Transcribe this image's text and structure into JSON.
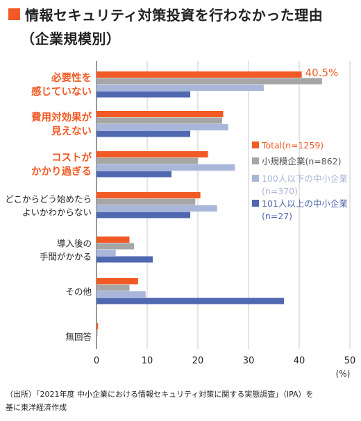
{
  "header": {
    "title": "情報セキュリティ対策投資を行わなかった理由",
    "subtitle": "（企業規模別）"
  },
  "colors": {
    "accent": "#f15a24",
    "title_marker": "#f15a24"
  },
  "chart_data": {
    "type": "bar",
    "orientation": "horizontal",
    "categories": [
      {
        "lines": [
          "必要性を",
          "感じていない"
        ],
        "highlight": true
      },
      {
        "lines": [
          "費用対効果が",
          "見えない"
        ],
        "highlight": true
      },
      {
        "lines": [
          "コストが",
          "かかり過ぎる"
        ],
        "highlight": true
      },
      {
        "lines": [
          "どこからどう始めたら",
          "よいかわからない"
        ],
        "highlight": false
      },
      {
        "lines": [
          "導入後の",
          "手間がかかる"
        ],
        "highlight": false
      },
      {
        "lines": [
          "その他"
        ],
        "highlight": false
      },
      {
        "lines": [
          "無回答"
        ],
        "highlight": false
      }
    ],
    "series": [
      {
        "name": "Total(n=1259)",
        "color": "#f15a24",
        "values": [
          40.5,
          25.0,
          22.0,
          20.5,
          6.5,
          8.2,
          0.3
        ]
      },
      {
        "name": "小規模企業(n=862)",
        "color": "#a6a6a6",
        "values": [
          44.5,
          24.8,
          20.0,
          19.5,
          7.4,
          6.5,
          0.2
        ]
      },
      {
        "name": "100人以下の中小企業(n=370)",
        "color": "#a8b6d9",
        "values": [
          33.0,
          26.0,
          27.3,
          23.8,
          3.8,
          9.7,
          0.0
        ]
      },
      {
        "name": "101人以上の中小企業(n=27)",
        "color": "#4f68b0",
        "values": [
          18.5,
          18.5,
          14.8,
          18.5,
          11.1,
          37.0,
          0.0
        ]
      }
    ],
    "data_labels": [
      {
        "series": 0,
        "category": 0,
        "text": "40.5%"
      }
    ],
    "xlim": [
      0,
      50
    ],
    "xticks": [
      0,
      10,
      20,
      30,
      40,
      50
    ],
    "xunit": "(%)",
    "grid": true,
    "legend_position": "right"
  },
  "source": {
    "line1": "（出所）「2021年度 中小企業における情報セキュリティ対策に関する実態調査」（IPA）を",
    "line2": "基に東洋経済作成"
  }
}
